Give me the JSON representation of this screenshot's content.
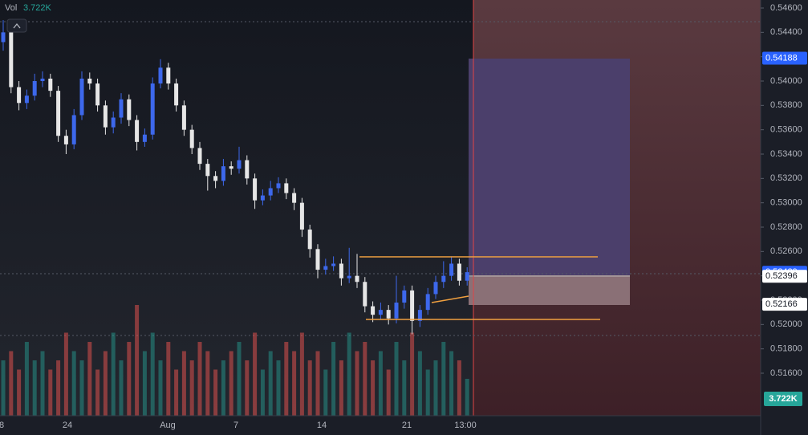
{
  "chart_data": {
    "type": "candlestick",
    "vol_label": "Vol",
    "vol_value": "3.722K",
    "ylim": [
      0.516,
      0.546
    ],
    "yticks": [
      {
        "value": 0.546,
        "label": "0.54600"
      },
      {
        "value": 0.544,
        "label": "0.54400"
      },
      {
        "value": 0.542,
        "label": "0.54200"
      },
      {
        "value": 0.54,
        "label": "0.54000"
      },
      {
        "value": 0.538,
        "label": "0.53800"
      },
      {
        "value": 0.536,
        "label": "0.53600"
      },
      {
        "value": 0.534,
        "label": "0.53400"
      },
      {
        "value": 0.532,
        "label": "0.53200"
      },
      {
        "value": 0.53,
        "label": "0.53000"
      },
      {
        "value": 0.528,
        "label": "0.52800"
      },
      {
        "value": 0.526,
        "label": "0.52600"
      },
      {
        "value": 0.524,
        "label": "0.52400"
      },
      {
        "value": 0.522,
        "label": "0.52200"
      },
      {
        "value": 0.52,
        "label": "0.52000"
      },
      {
        "value": 0.518,
        "label": "0.51800"
      },
      {
        "value": 0.516,
        "label": "0.51600"
      }
    ],
    "price_labels": [
      {
        "value": 0.54188,
        "label": "0.54188",
        "color": "#2962ff"
      },
      {
        "value": 0.52429,
        "label": "0.52429",
        "color": "#2962ff"
      },
      {
        "value": 0.52396,
        "label": "0.52396",
        "color": "#ffffff"
      },
      {
        "value": 0.52166,
        "label": "0.52166",
        "color": "#ffffff"
      }
    ],
    "x_labels": [
      "8",
      "24",
      "Aug",
      "7",
      "14",
      "21",
      "13:00"
    ],
    "up_color": "#3d68ec",
    "down_color": "#e6e6e6",
    "candles": [
      [
        0.5432,
        0.545,
        0.5425,
        0.544
      ],
      [
        0.544,
        0.5444,
        0.539,
        0.5395
      ],
      [
        0.5395,
        0.54,
        0.5376,
        0.5382
      ],
      [
        0.5382,
        0.5393,
        0.5377,
        0.5388
      ],
      [
        0.5388,
        0.5406,
        0.5384,
        0.54
      ],
      [
        0.54,
        0.5408,
        0.5395,
        0.5402
      ],
      [
        0.5402,
        0.5406,
        0.5387,
        0.5392
      ],
      [
        0.5392,
        0.5396,
        0.535,
        0.5355
      ],
      [
        0.5355,
        0.536,
        0.534,
        0.5348
      ],
      [
        0.5348,
        0.5377,
        0.5344,
        0.5372
      ],
      [
        0.5372,
        0.5408,
        0.5368,
        0.5402
      ],
      [
        0.5402,
        0.5407,
        0.5393,
        0.5398
      ],
      [
        0.5398,
        0.5402,
        0.5375,
        0.538
      ],
      [
        0.538,
        0.5384,
        0.5356,
        0.5362
      ],
      [
        0.5362,
        0.5375,
        0.5357,
        0.537
      ],
      [
        0.537,
        0.539,
        0.5365,
        0.5385
      ],
      [
        0.5385,
        0.5389,
        0.5363,
        0.5368
      ],
      [
        0.5368,
        0.5372,
        0.5343,
        0.535
      ],
      [
        0.535,
        0.5361,
        0.5346,
        0.5356
      ],
      [
        0.5356,
        0.5403,
        0.5352,
        0.5398
      ],
      [
        0.5398,
        0.5418,
        0.5394,
        0.5411
      ],
      [
        0.5411,
        0.5415,
        0.5393,
        0.5398
      ],
      [
        0.5398,
        0.5402,
        0.5375,
        0.538
      ],
      [
        0.538,
        0.5384,
        0.5355,
        0.536
      ],
      [
        0.536,
        0.5364,
        0.534,
        0.5345
      ],
      [
        0.5345,
        0.535,
        0.5327,
        0.5332
      ],
      [
        0.5332,
        0.5336,
        0.531,
        0.5322
      ],
      [
        0.5322,
        0.5326,
        0.5312,
        0.5318
      ],
      [
        0.5318,
        0.5336,
        0.5314,
        0.533
      ],
      [
        0.533,
        0.5334,
        0.5323,
        0.5328
      ],
      [
        0.5328,
        0.5346,
        0.5324,
        0.5335
      ],
      [
        0.5335,
        0.5339,
        0.5315,
        0.532
      ],
      [
        0.532,
        0.5324,
        0.5295,
        0.5302
      ],
      [
        0.5302,
        0.5311,
        0.5298,
        0.5306
      ],
      [
        0.5306,
        0.5318,
        0.5302,
        0.5312
      ],
      [
        0.5312,
        0.5321,
        0.5308,
        0.5316
      ],
      [
        0.5316,
        0.532,
        0.5303,
        0.5308
      ],
      [
        0.5308,
        0.5312,
        0.5294,
        0.53
      ],
      [
        0.53,
        0.5304,
        0.5272,
        0.5278
      ],
      [
        0.5278,
        0.5282,
        0.5255,
        0.5262
      ],
      [
        0.5262,
        0.5266,
        0.5238,
        0.5245
      ],
      [
        0.5245,
        0.5254,
        0.5241,
        0.5248
      ],
      [
        0.5248,
        0.5256,
        0.5244,
        0.525
      ],
      [
        0.525,
        0.5254,
        0.5232,
        0.5238
      ],
      [
        0.5238,
        0.5263,
        0.5234,
        0.524
      ],
      [
        0.524,
        0.5258,
        0.523,
        0.5235
      ],
      [
        0.5235,
        0.5239,
        0.521,
        0.5215
      ],
      [
        0.5215,
        0.5219,
        0.5202,
        0.5208
      ],
      [
        0.5208,
        0.5218,
        0.5204,
        0.5212
      ],
      [
        0.5212,
        0.5216,
        0.52,
        0.5205
      ],
      [
        0.5205,
        0.524,
        0.5201,
        0.5218
      ],
      [
        0.5218,
        0.5232,
        0.5213,
        0.5228
      ],
      [
        0.5228,
        0.5232,
        0.5192,
        0.5203
      ],
      [
        0.5203,
        0.5216,
        0.5198,
        0.5212
      ],
      [
        0.5212,
        0.523,
        0.5208,
        0.5225
      ],
      [
        0.5225,
        0.524,
        0.5221,
        0.5235
      ],
      [
        0.5235,
        0.5252,
        0.523,
        0.524
      ],
      [
        0.524,
        0.5256,
        0.5236,
        0.525
      ],
      [
        0.525,
        0.5254,
        0.5232,
        0.5236
      ],
      [
        0.5236,
        0.5247,
        0.5232,
        0.5243
      ]
    ],
    "volume": [
      6,
      7,
      5,
      8,
      6,
      7,
      5,
      6,
      9,
      7,
      6,
      8,
      5,
      7,
      9,
      6,
      8,
      12,
      7,
      9,
      6,
      8,
      5,
      7,
      6,
      8,
      7,
      5,
      6,
      7,
      8,
      6,
      9,
      5,
      7,
      6,
      8,
      7,
      9,
      6,
      7,
      5,
      8,
      6,
      9,
      7,
      8,
      6,
      7,
      5,
      8,
      6,
      9,
      7,
      5,
      6,
      8,
      7,
      6,
      4
    ]
  }
}
